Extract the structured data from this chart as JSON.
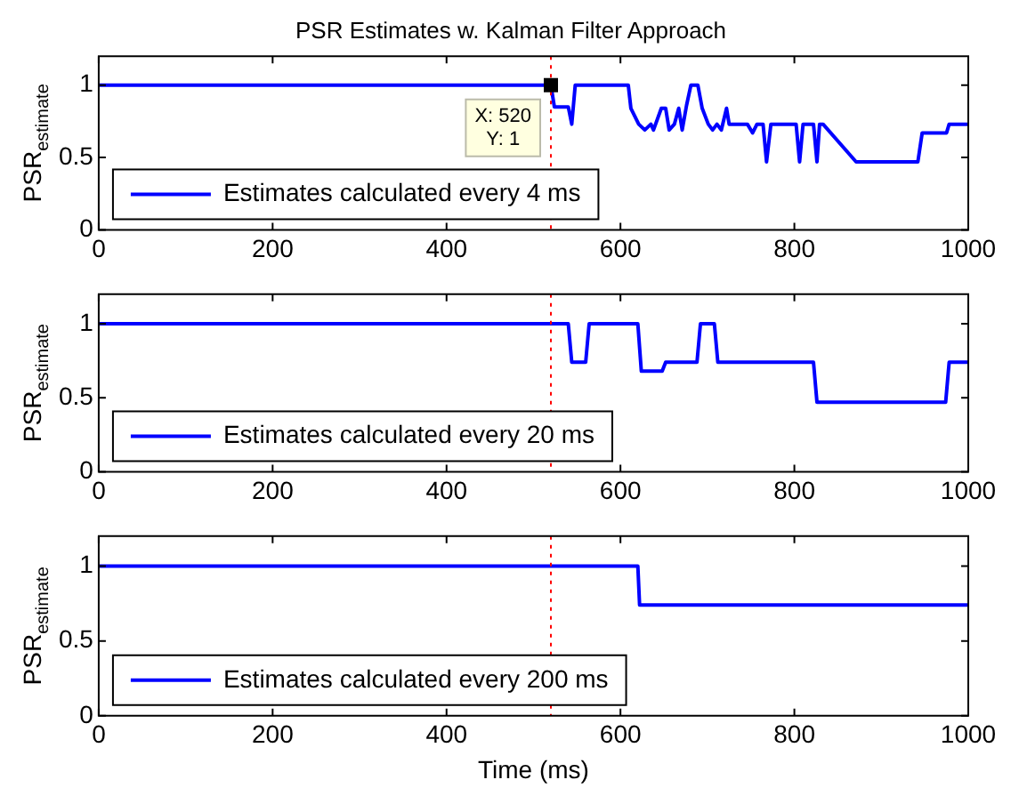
{
  "chart_data": [
    {
      "type": "line",
      "title": "PSR Estimates w. Kalman Filter Approach",
      "ylabel": "PSR$_{estimate}$",
      "legend": "bottom left",
      "grid": false,
      "xlim": [
        0,
        1000
      ],
      "xticks": [
        0,
        200,
        400,
        600,
        800,
        1000
      ],
      "ylim": [
        0,
        1.2
      ],
      "yticks": [
        0,
        0.5,
        1
      ],
      "series": [
        {
          "name": "Estimates calculated every 4 ms",
          "color": "#0000ff",
          "x": [
            0,
            520,
            524,
            529,
            540,
            544,
            548,
            609,
            612,
            621,
            628,
            635,
            638,
            647,
            652,
            656,
            662,
            667,
            671,
            676,
            681,
            689,
            694,
            701,
            706,
            711,
            716,
            722,
            725,
            746,
            752,
            757,
            764,
            768,
            773,
            802,
            806,
            810,
            822,
            826,
            829,
            833,
            871,
            942,
            947,
            975,
            978,
            1000
          ],
          "values": [
            1,
            1,
            0.85,
            0.85,
            0.85,
            0.73,
            1,
            1,
            0.84,
            0.73,
            0.69,
            0.73,
            0.69,
            0.84,
            0.84,
            0.69,
            0.73,
            0.84,
            0.69,
            0.86,
            1,
            1,
            0.84,
            0.73,
            0.69,
            0.73,
            0.69,
            0.84,
            0.73,
            0.73,
            0.67,
            0.73,
            0.73,
            0.47,
            0.73,
            0.73,
            0.47,
            0.73,
            0.73,
            0.47,
            0.73,
            0.73,
            0.47,
            0.47,
            0.67,
            0.67,
            0.73,
            0.73
          ]
        }
      ],
      "ref_lines": [
        {
          "axis": "x",
          "value": 520,
          "color": "#ff0000",
          "line_style": "dotted"
        }
      ],
      "annotations": [
        {
          "text": "X: 520\nY: 1",
          "x": 520,
          "y": 1
        }
      ]
    },
    {
      "type": "line",
      "ylabel": "PSR$_{estimate}$",
      "legend": "bottom left",
      "grid": false,
      "xlim": [
        0,
        1000
      ],
      "xticks": [
        0,
        200,
        400,
        600,
        800,
        1000
      ],
      "ylim": [
        0,
        1.2
      ],
      "yticks": [
        0,
        0.5,
        1
      ],
      "series": [
        {
          "name": "Estimates calculated every 20 ms",
          "color": "#0000ff",
          "x": [
            0,
            540,
            544,
            560,
            564,
            620,
            624,
            648,
            652,
            688,
            692,
            708,
            712,
            822,
            826,
            974,
            978,
            1000
          ],
          "values": [
            1,
            1,
            0.74,
            0.74,
            1,
            1,
            0.68,
            0.68,
            0.74,
            0.74,
            1,
            1,
            0.74,
            0.74,
            0.47,
            0.47,
            0.74,
            0.74
          ]
        }
      ],
      "ref_lines": [
        {
          "axis": "x",
          "value": 520,
          "color": "#ff0000",
          "line_style": "dotted"
        }
      ]
    },
    {
      "type": "line",
      "ylabel": "PSR$_{estimate}$",
      "xlabel": "Time (ms)",
      "legend": "bottom left",
      "grid": false,
      "xlim": [
        0,
        1000
      ],
      "xticks": [
        0,
        200,
        400,
        600,
        800,
        1000
      ],
      "ylim": [
        0,
        1.2
      ],
      "yticks": [
        0,
        0.5,
        1
      ],
      "series": [
        {
          "name": "Estimates calculated every 200 ms",
          "color": "#0000ff",
          "x": [
            0,
            620,
            622,
            1000
          ],
          "values": [
            1,
            1,
            0.74,
            0.74
          ]
        }
      ],
      "ref_lines": [
        {
          "axis": "x",
          "value": 520,
          "color": "#ff0000",
          "line_style": "dotted"
        }
      ]
    }
  ]
}
